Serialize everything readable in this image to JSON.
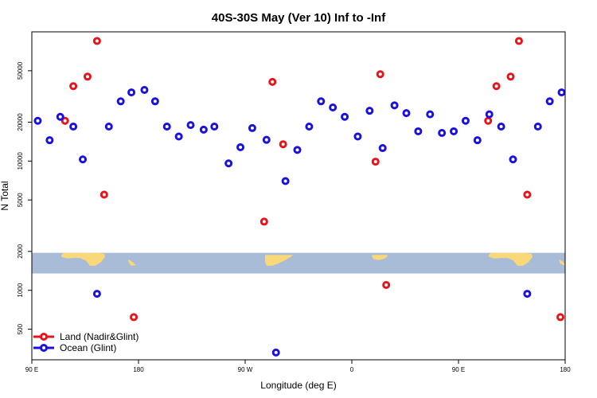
{
  "chart_data": {
    "type": "scatter",
    "title": "40S-30S May (Ver 10)   Inf to -Inf",
    "xlabel": "Longitude (deg E)",
    "ylabel": "N Total",
    "x_scale": "linear",
    "y_scale": "log",
    "xlim": [
      90,
      540
    ],
    "ylim": [
      290,
      100000
    ],
    "x_ticks": [
      {
        "value": 90,
        "label": "90 E"
      },
      {
        "value": 180,
        "label": "180"
      },
      {
        "value": 270,
        "label": "90 W"
      },
      {
        "value": 360,
        "label": "0"
      },
      {
        "value": 450,
        "label": "90 E"
      },
      {
        "value": 540,
        "label": "180"
      }
    ],
    "y_ticks": [
      {
        "value": 500,
        "label": "500"
      },
      {
        "value": 1000,
        "label": "1000"
      },
      {
        "value": 2000,
        "label": "2000"
      },
      {
        "value": 5000,
        "label": "5000"
      },
      {
        "value": 10000,
        "label": "10000"
      },
      {
        "value": 20000,
        "label": "20000"
      },
      {
        "value": 50000,
        "label": "50000"
      }
    ],
    "legend_position": "bottom-left",
    "series": [
      {
        "name": "Land (Nadir&Glint)",
        "color": "#e8141a",
        "points": [
          [
            118,
            20500
          ],
          [
            125,
            38000
          ],
          [
            137,
            45000
          ],
          [
            145,
            85000
          ],
          [
            151,
            5500
          ],
          [
            176,
            620
          ],
          [
            286,
            3400
          ],
          [
            293,
            41000
          ],
          [
            302,
            13500
          ],
          [
            380,
            9900
          ],
          [
            384,
            47000
          ],
          [
            389,
            1100
          ],
          [
            475,
            20500
          ],
          [
            482,
            38000
          ],
          [
            494,
            45000
          ],
          [
            501,
            85000
          ],
          [
            508,
            5500
          ],
          [
            536,
            620
          ]
        ]
      },
      {
        "name": "Ocean (Glint)",
        "color": "#1a10e0",
        "points": [
          [
            95,
            20500
          ],
          [
            105,
            14500
          ],
          [
            114,
            22000
          ],
          [
            125,
            18500
          ],
          [
            133,
            10300
          ],
          [
            145,
            940
          ],
          [
            155,
            18500
          ],
          [
            165,
            29000
          ],
          [
            174,
            34000
          ],
          [
            185,
            35500
          ],
          [
            194,
            29000
          ],
          [
            204,
            18500
          ],
          [
            214,
            15500
          ],
          [
            224,
            19000
          ],
          [
            235,
            17500
          ],
          [
            244,
            18500
          ],
          [
            256,
            9600
          ],
          [
            266,
            12800
          ],
          [
            276,
            18000
          ],
          [
            288,
            14600
          ],
          [
            296,
            330
          ],
          [
            304,
            7000
          ],
          [
            314,
            12200
          ],
          [
            324,
            18500
          ],
          [
            334,
            29000
          ],
          [
            344,
            26000
          ],
          [
            354,
            22000
          ],
          [
            365,
            15500
          ],
          [
            375,
            24500
          ],
          [
            386,
            12600
          ],
          [
            396,
            27000
          ],
          [
            406,
            23500
          ],
          [
            416,
            17000
          ],
          [
            426,
            23000
          ],
          [
            436,
            16500
          ],
          [
            446,
            17000
          ],
          [
            456,
            20500
          ],
          [
            466,
            14500
          ],
          [
            476,
            23000
          ],
          [
            486,
            18500
          ],
          [
            496,
            10300
          ],
          [
            508,
            940
          ],
          [
            517,
            18500
          ],
          [
            527,
            29000
          ],
          [
            537,
            34000
          ]
        ]
      }
    ],
    "map_strip": {
      "y_range": [
        1350,
        1950
      ],
      "ocean_color": "#a8bcd8",
      "land_color": "#f8d878",
      "land_masses": [
        "Australia",
        "New Zealand",
        "South America",
        "Southern Africa",
        "Australia",
        "New Zealand"
      ]
    }
  }
}
